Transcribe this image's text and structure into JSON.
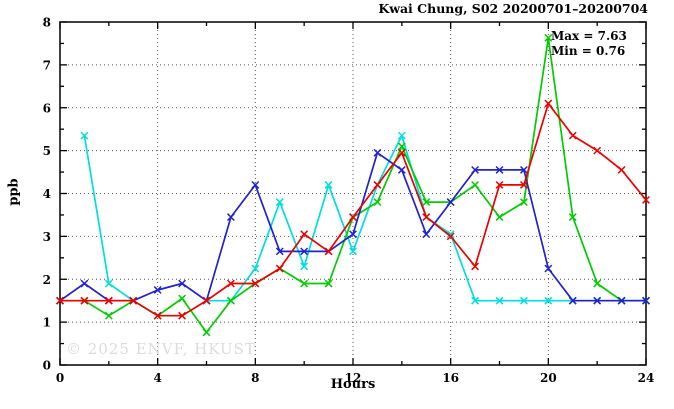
{
  "watermark": {
    "text": "© 2025 ENVF, HKUST"
  },
  "chart_data": {
    "type": "line",
    "title": "Kwai Chung, S02 20200701–20200704",
    "xlabel": "Hours",
    "ylabel": "ppb",
    "xlim": [
      0,
      24
    ],
    "ylim": [
      0,
      8
    ],
    "x_ticks": [
      0,
      4,
      8,
      12,
      16,
      20,
      24
    ],
    "y_ticks": [
      0,
      1,
      2,
      3,
      4,
      5,
      6,
      7,
      8
    ],
    "x_minor_step": 2,
    "y_minor_step": 0.5,
    "grid": {
      "x_lines": [
        4,
        8,
        12,
        16,
        20
      ],
      "y_lines": [
        1,
        2,
        3,
        4,
        5,
        6,
        7
      ],
      "style": "dotted"
    },
    "annotations": [
      "Max = 7.63",
      "Min = 0.76"
    ],
    "max": 7.63,
    "min": 0.76,
    "x": [
      0,
      1,
      2,
      3,
      4,
      5,
      6,
      7,
      8,
      9,
      10,
      11,
      12,
      13,
      14,
      15,
      16,
      17,
      18,
      19,
      20,
      21,
      22,
      23,
      24
    ],
    "series": [
      {
        "name": "cyan-series",
        "color": "#00dede",
        "marker": "x",
        "values": [
          null,
          5.35,
          1.9,
          1.5,
          1.15,
          1.15,
          1.5,
          1.5,
          2.25,
          3.8,
          2.3,
          4.2,
          2.65,
          4.2,
          5.35,
          3.45,
          3.05,
          1.5,
          1.5,
          1.5,
          1.5,
          1.5,
          1.5,
          1.5,
          1.5
        ]
      },
      {
        "name": "green-series",
        "color": "#00cc00",
        "marker": "x",
        "values": [
          1.5,
          1.5,
          1.15,
          1.5,
          1.15,
          1.55,
          0.76,
          1.5,
          1.9,
          2.25,
          1.9,
          1.9,
          3.45,
          3.8,
          5.1,
          3.8,
          3.8,
          4.2,
          3.45,
          3.8,
          7.63,
          3.45,
          1.9,
          1.5,
          1.5
        ]
      },
      {
        "name": "blue-series",
        "color": "#2222cc",
        "marker": "x",
        "values": [
          1.5,
          1.9,
          1.5,
          1.5,
          1.75,
          1.9,
          1.5,
          3.45,
          4.2,
          2.65,
          2.65,
          2.65,
          3.05,
          4.95,
          4.55,
          3.05,
          3.8,
          4.55,
          4.55,
          4.55,
          2.25,
          1.5,
          1.5,
          1.5,
          1.5
        ]
      },
      {
        "name": "red-series",
        "color": "#ee0000",
        "marker": "x",
        "values": [
          1.5,
          1.5,
          1.5,
          1.5,
          1.15,
          1.15,
          1.5,
          1.9,
          1.9,
          2.25,
          3.05,
          2.65,
          3.45,
          4.2,
          4.95,
          3.45,
          3.0,
          2.3,
          4.2,
          4.2,
          6.1,
          5.35,
          5.0,
          4.55,
          3.85
        ]
      }
    ]
  }
}
